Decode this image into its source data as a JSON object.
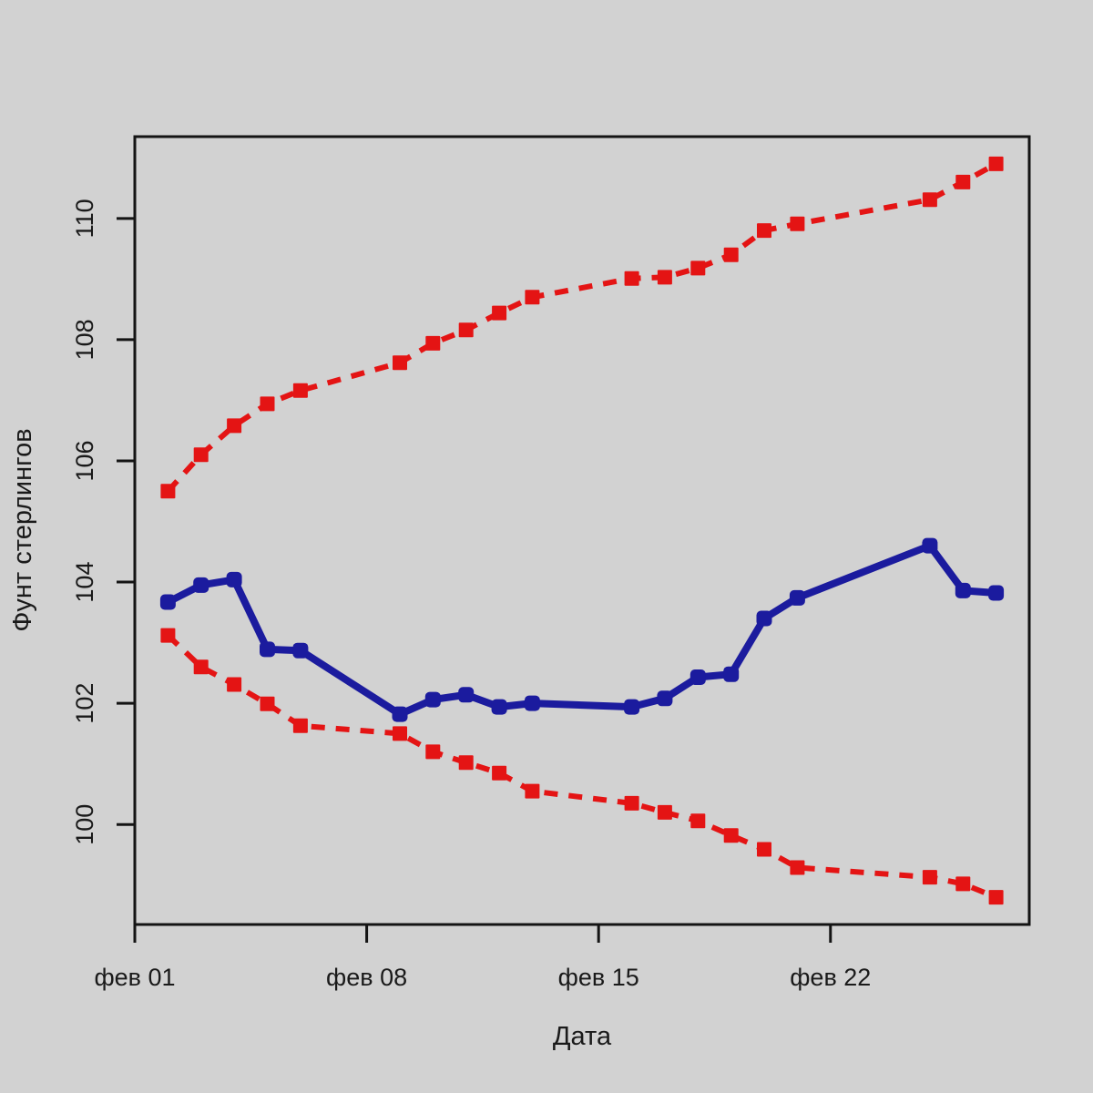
{
  "figure": {
    "background_color": "#d2d2d2",
    "box_color": "#141414",
    "text_color": "#1a1a1a"
  },
  "chart_data": {
    "type": "line",
    "title": "",
    "xlabel": "Дата",
    "ylabel": "Фунт стерлингов",
    "x_month_label": "фев",
    "x_range": [
      1,
      28
    ],
    "ylim": [
      98.35,
      111.35
    ],
    "grid": false,
    "legend_position": "none",
    "x_ticks": {
      "days": [
        1,
        8,
        15,
        22
      ],
      "labels": [
        "фев 01",
        "фев 08",
        "фев 15",
        "фев 22"
      ]
    },
    "y_ticks": {
      "values": [
        100,
        102,
        104,
        106,
        108,
        110
      ],
      "labels": [
        "100",
        "102",
        "104",
        "106",
        "108",
        "110"
      ]
    },
    "x_days_of_february": [
      2,
      3,
      4,
      5,
      6,
      9,
      10,
      11,
      12,
      13,
      16,
      17,
      18,
      19,
      20,
      21,
      25,
      26,
      27
    ],
    "series": [
      {
        "name": "lower-bound-dashed-red",
        "color": "#e41414",
        "line_style": "dashed",
        "marker": "square",
        "values": [
          103.12,
          102.6,
          102.31,
          101.99,
          101.63,
          101.5,
          101.2,
          101.02,
          100.85,
          100.55,
          100.35,
          100.2,
          100.06,
          99.82,
          99.59,
          99.29,
          99.13,
          99.02,
          98.8
        ]
      },
      {
        "name": "upper-bound-dashed-red",
        "color": "#e41414",
        "line_style": "dashed",
        "marker": "square",
        "values": [
          105.5,
          106.1,
          106.58,
          106.94,
          107.16,
          107.62,
          107.94,
          108.16,
          108.44,
          108.7,
          109.01,
          109.03,
          109.18,
          109.4,
          109.8,
          109.91,
          110.31,
          110.6,
          110.9
        ]
      },
      {
        "name": "actual-solid-blue",
        "color": "#1b1b9e",
        "line_style": "solid",
        "marker": "round-square",
        "values": [
          103.67,
          103.95,
          104.04,
          102.89,
          102.87,
          101.82,
          102.06,
          102.14,
          101.94,
          102.0,
          101.94,
          102.08,
          102.43,
          102.48,
          103.4,
          103.74,
          104.6,
          103.86,
          103.82
        ]
      }
    ]
  }
}
